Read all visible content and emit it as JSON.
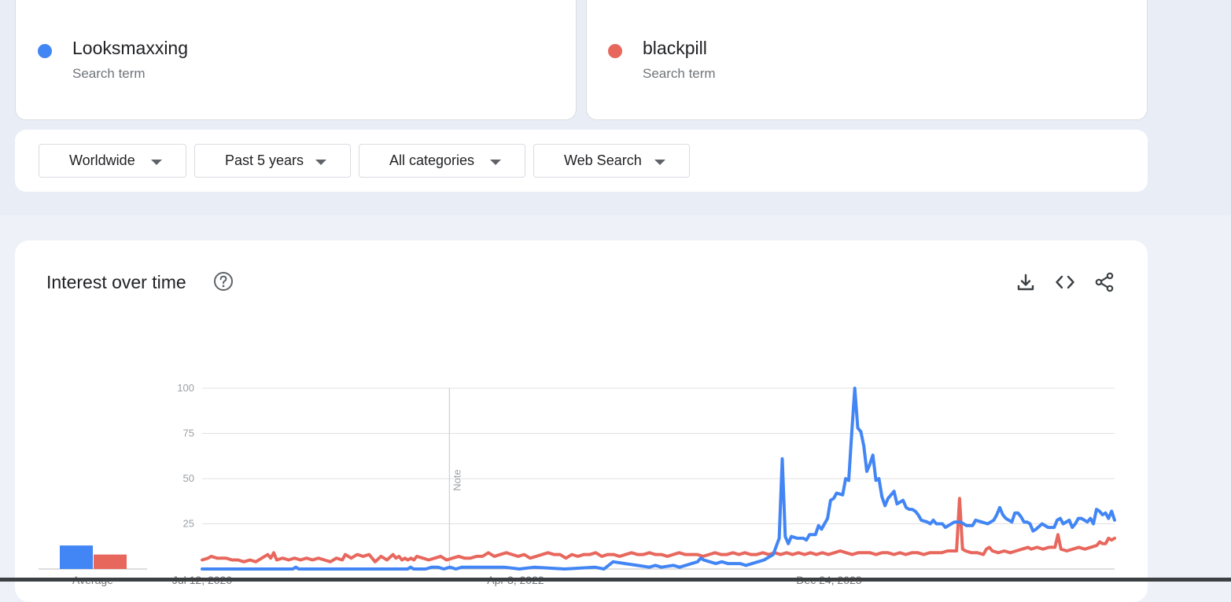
{
  "terms": [
    {
      "name": "Looksmaxxing",
      "subtitle": "Search term",
      "color": "#4285f4"
    },
    {
      "name": "blackpill",
      "subtitle": "Search term",
      "color": "#e8675d"
    }
  ],
  "filters": [
    {
      "label": "Worldwide"
    },
    {
      "label": "Past 5 years"
    },
    {
      "label": "All categories"
    },
    {
      "label": "Web Search"
    }
  ],
  "card": {
    "title": "Interest over time",
    "icons": [
      "help-icon",
      "download-icon",
      "embed-code-icon",
      "share-icon"
    ]
  },
  "chart_data": {
    "type": "line",
    "title": "",
    "xlabel": "",
    "ylabel": "",
    "ylim": [
      0,
      100
    ],
    "y_ticks": [
      25,
      50,
      75,
      100
    ],
    "x_tick_labels": [
      "Jul 12, 2020",
      "Apr 3, 2022",
      "Dec 24, 2023"
    ],
    "x_tick_weeks": [
      0,
      90,
      180
    ],
    "note_label": "Note",
    "note_week": 71,
    "grid": true,
    "weeks": 262,
    "series": [
      {
        "name": "Looksmaxxing",
        "color": "#4285f4",
        "points": [
          [
            0,
            0
          ],
          [
            30,
            0
          ],
          [
            31,
            1
          ],
          [
            32,
            0
          ],
          [
            68,
            0
          ],
          [
            69,
            1
          ],
          [
            70,
            0
          ],
          [
            74,
            0
          ],
          [
            76,
            1
          ],
          [
            78,
            1
          ],
          [
            80,
            0
          ],
          [
            82,
            1
          ],
          [
            84,
            0
          ],
          [
            86,
            1
          ],
          [
            100,
            1
          ],
          [
            105,
            0
          ],
          [
            110,
            1
          ],
          [
            120,
            0
          ],
          [
            130,
            1
          ],
          [
            133,
            0
          ],
          [
            136,
            4
          ],
          [
            140,
            3
          ],
          [
            144,
            2
          ],
          [
            148,
            1
          ],
          [
            150,
            2
          ],
          [
            152,
            1
          ],
          [
            156,
            2
          ],
          [
            158,
            1
          ],
          [
            160,
            2
          ],
          [
            162,
            3
          ],
          [
            164,
            4
          ],
          [
            165,
            6
          ],
          [
            166,
            5
          ],
          [
            168,
            4
          ],
          [
            170,
            3
          ],
          [
            172,
            4
          ],
          [
            174,
            3
          ],
          [
            178,
            3
          ],
          [
            180,
            2
          ],
          [
            182,
            3
          ],
          [
            184,
            4
          ],
          [
            186,
            5
          ],
          [
            189,
            8
          ],
          [
            191,
            17
          ],
          [
            192,
            61
          ],
          [
            193,
            18
          ],
          [
            194,
            14
          ],
          [
            195,
            18
          ],
          [
            197,
            17
          ],
          [
            199,
            17
          ],
          [
            200,
            16
          ],
          [
            201,
            19
          ],
          [
            203,
            19
          ],
          [
            204,
            24
          ],
          [
            205,
            22
          ],
          [
            207,
            28
          ],
          [
            208,
            38
          ],
          [
            209,
            39
          ],
          [
            210,
            42
          ],
          [
            212,
            41
          ],
          [
            213,
            50
          ],
          [
            214,
            49
          ],
          [
            215,
            75
          ],
          [
            216,
            100
          ],
          [
            217,
            78
          ],
          [
            218,
            76
          ],
          [
            219,
            68
          ],
          [
            220,
            54
          ],
          [
            221,
            58
          ],
          [
            222,
            63
          ],
          [
            223,
            49
          ],
          [
            224,
            50
          ],
          [
            225,
            40
          ],
          [
            226,
            35
          ],
          [
            227,
            39
          ],
          [
            228,
            41
          ],
          [
            229,
            43
          ],
          [
            230,
            36
          ],
          [
            231,
            37
          ],
          [
            232,
            38
          ],
          [
            233,
            34
          ],
          [
            234,
            33
          ],
          [
            235,
            33
          ],
          [
            236,
            32
          ],
          [
            237,
            30
          ],
          [
            238,
            27
          ],
          [
            240,
            26
          ],
          [
            241,
            25
          ],
          [
            242,
            27
          ],
          [
            243,
            25
          ],
          [
            245,
            25
          ],
          [
            246,
            23
          ],
          [
            247,
            24
          ],
          [
            249,
            26
          ],
          [
            251,
            26
          ],
          [
            253,
            24
          ],
          [
            255,
            24
          ],
          [
            256,
            27
          ],
          [
            258,
            26
          ],
          [
            260,
            25
          ],
          [
            261,
            26
          ],
          [
            262,
            27
          ],
          [
            263,
            30
          ],
          [
            264,
            34
          ],
          [
            265,
            30
          ],
          [
            266,
            28
          ],
          [
            268,
            26
          ],
          [
            269,
            31
          ],
          [
            270,
            31
          ],
          [
            271,
            29
          ],
          [
            272,
            26
          ],
          [
            273,
            26
          ],
          [
            274,
            25
          ],
          [
            275,
            21
          ],
          [
            276,
            22
          ],
          [
            278,
            25
          ],
          [
            280,
            23
          ],
          [
            282,
            23
          ],
          [
            283,
            27
          ],
          [
            284,
            28
          ],
          [
            285,
            25
          ],
          [
            287,
            27
          ],
          [
            288,
            23
          ],
          [
            289,
            25
          ],
          [
            290,
            28
          ],
          [
            291,
            28
          ],
          [
            292,
            27
          ],
          [
            293,
            26
          ],
          [
            294,
            28
          ],
          [
            295,
            25
          ],
          [
            296,
            33
          ],
          [
            297,
            32
          ],
          [
            298,
            30
          ],
          [
            299,
            31
          ],
          [
            300,
            28
          ],
          [
            301,
            32
          ],
          [
            302,
            27
          ]
        ]
      },
      {
        "name": "blackpill",
        "color": "#e8675d",
        "points": [
          [
            0,
            5
          ],
          [
            2,
            6
          ],
          [
            3,
            7
          ],
          [
            5,
            6
          ],
          [
            8,
            6
          ],
          [
            10,
            5
          ],
          [
            12,
            5
          ],
          [
            14,
            4
          ],
          [
            16,
            5
          ],
          [
            18,
            4
          ],
          [
            20,
            6
          ],
          [
            22,
            8
          ],
          [
            23,
            6
          ],
          [
            24,
            9
          ],
          [
            25,
            5
          ],
          [
            27,
            6
          ],
          [
            29,
            5
          ],
          [
            31,
            6
          ],
          [
            33,
            5
          ],
          [
            35,
            6
          ],
          [
            37,
            5
          ],
          [
            39,
            6
          ],
          [
            41,
            5
          ],
          [
            43,
            4
          ],
          [
            45,
            6
          ],
          [
            47,
            5
          ],
          [
            48,
            8
          ],
          [
            50,
            6
          ],
          [
            52,
            8
          ],
          [
            54,
            7
          ],
          [
            56,
            8
          ],
          [
            58,
            4
          ],
          [
            60,
            7
          ],
          [
            62,
            5
          ],
          [
            64,
            8
          ],
          [
            65,
            6
          ],
          [
            66,
            7
          ],
          [
            67,
            5
          ],
          [
            68,
            6
          ],
          [
            69,
            5
          ],
          [
            70,
            6
          ],
          [
            71,
            5
          ],
          [
            72,
            7
          ],
          [
            74,
            6
          ],
          [
            76,
            5
          ],
          [
            78,
            6
          ],
          [
            80,
            7
          ],
          [
            82,
            5
          ],
          [
            84,
            6
          ],
          [
            86,
            7
          ],
          [
            88,
            6
          ],
          [
            90,
            6
          ],
          [
            92,
            7
          ],
          [
            94,
            7
          ],
          [
            96,
            9
          ],
          [
            98,
            7
          ],
          [
            100,
            8
          ],
          [
            102,
            9
          ],
          [
            104,
            8
          ],
          [
            106,
            7
          ],
          [
            108,
            8
          ],
          [
            110,
            6
          ],
          [
            112,
            7
          ],
          [
            114,
            8
          ],
          [
            116,
            9
          ],
          [
            118,
            8
          ],
          [
            120,
            8
          ],
          [
            122,
            6
          ],
          [
            124,
            8
          ],
          [
            126,
            7
          ],
          [
            128,
            8
          ],
          [
            130,
            8
          ],
          [
            132,
            9
          ],
          [
            134,
            7
          ],
          [
            136,
            8
          ],
          [
            138,
            8
          ],
          [
            140,
            7
          ],
          [
            142,
            8
          ],
          [
            144,
            9
          ],
          [
            146,
            8
          ],
          [
            148,
            8
          ],
          [
            150,
            9
          ],
          [
            152,
            8
          ],
          [
            154,
            8
          ],
          [
            156,
            7
          ],
          [
            158,
            8
          ],
          [
            160,
            9
          ],
          [
            162,
            8
          ],
          [
            164,
            8
          ],
          [
            166,
            8
          ],
          [
            168,
            7
          ],
          [
            170,
            8
          ],
          [
            172,
            9
          ],
          [
            174,
            8
          ],
          [
            176,
            8
          ],
          [
            178,
            9
          ],
          [
            180,
            8
          ],
          [
            182,
            9
          ],
          [
            184,
            8
          ],
          [
            186,
            8
          ],
          [
            188,
            9
          ],
          [
            190,
            8
          ],
          [
            192,
            9
          ],
          [
            194,
            8
          ],
          [
            196,
            9
          ],
          [
            198,
            8
          ],
          [
            200,
            9
          ],
          [
            202,
            8
          ],
          [
            204,
            9
          ],
          [
            206,
            8
          ],
          [
            208,
            9
          ],
          [
            210,
            8
          ],
          [
            212,
            9
          ],
          [
            214,
            10
          ],
          [
            216,
            9
          ],
          [
            218,
            8
          ],
          [
            220,
            9
          ],
          [
            222,
            9
          ],
          [
            224,
            9
          ],
          [
            226,
            8
          ],
          [
            228,
            9
          ],
          [
            230,
            9
          ],
          [
            232,
            8
          ],
          [
            234,
            9
          ],
          [
            236,
            8
          ],
          [
            238,
            9
          ],
          [
            240,
            9
          ],
          [
            242,
            8
          ],
          [
            244,
            9
          ],
          [
            246,
            9
          ],
          [
            248,
            9
          ],
          [
            250,
            10
          ],
          [
            252,
            10
          ],
          [
            253,
            10
          ],
          [
            254,
            39
          ],
          [
            255,
            11
          ],
          [
            256,
            10
          ],
          [
            258,
            9
          ],
          [
            260,
            9
          ],
          [
            262,
            8
          ],
          [
            263,
            11
          ],
          [
            264,
            12
          ],
          [
            265,
            10
          ],
          [
            267,
            9
          ],
          [
            269,
            10
          ],
          [
            271,
            9
          ],
          [
            273,
            10
          ],
          [
            275,
            11
          ],
          [
            277,
            12
          ],
          [
            278,
            11
          ],
          [
            280,
            12
          ],
          [
            282,
            11
          ],
          [
            284,
            12
          ],
          [
            286,
            12
          ],
          [
            287,
            19
          ],
          [
            288,
            11
          ],
          [
            290,
            10
          ],
          [
            292,
            11
          ],
          [
            294,
            12
          ],
          [
            296,
            11
          ],
          [
            298,
            12
          ],
          [
            300,
            13
          ],
          [
            301,
            15
          ],
          [
            302,
            14
          ],
          [
            303,
            14
          ],
          [
            304,
            17
          ],
          [
            305,
            16
          ],
          [
            306,
            17
          ]
        ]
      }
    ],
    "averages": [
      {
        "name": "Looksmaxxing",
        "value": 13,
        "color": "#4285f4"
      },
      {
        "name": "blackpill",
        "value": 8,
        "color": "#e8675d"
      }
    ],
    "average_label": "Average"
  }
}
